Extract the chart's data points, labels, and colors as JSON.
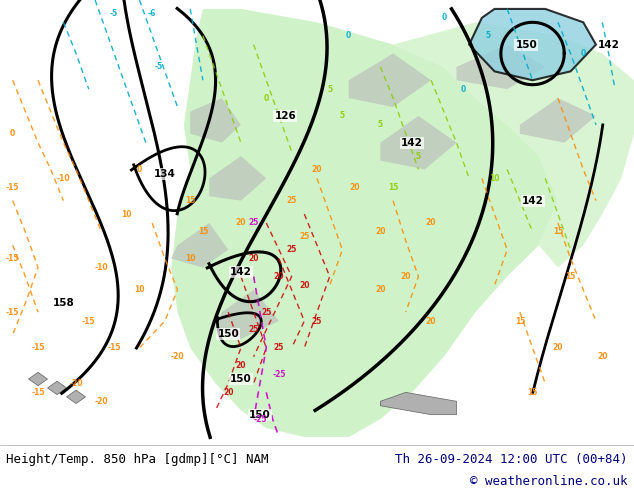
{
  "title_left": "Height/Temp. 850 hPa [gdmp][°C] NAM",
  "title_right": "Th 26-09-2024 12:00 UTC (00+84)",
  "copyright": "© weatheronline.co.uk",
  "bg_color": "#f0f0f0",
  "map_bg": "#e8e8e8",
  "land_color_gray": "#c8c8c8",
  "land_color_green": "#b8e8b0",
  "land_color_light_green": "#d4f0c8",
  "ocean_color": "#ffffff",
  "title_color": "#000080",
  "copyright_color": "#000080",
  "font_size_title": 9,
  "font_size_copyright": 9,
  "footer_bg": "#ffffff",
  "contour_colors": {
    "geopotential_thick": "#000000",
    "temp_orange": "#ff8c00",
    "temp_red": "#cc0000",
    "temp_magenta": "#cc00cc",
    "temp_cyan": "#00cccc",
    "temp_green_yellow": "#88cc00",
    "temp_light_green": "#44cc44"
  },
  "geopotential_labels": [
    "126",
    "134",
    "142",
    "150",
    "158"
  ],
  "temp_labels_positive": [
    "5",
    "10",
    "15",
    "20",
    "25"
  ],
  "temp_labels_negative": [
    "-5",
    "-6",
    "-10",
    "-15",
    "-20",
    "-25"
  ]
}
